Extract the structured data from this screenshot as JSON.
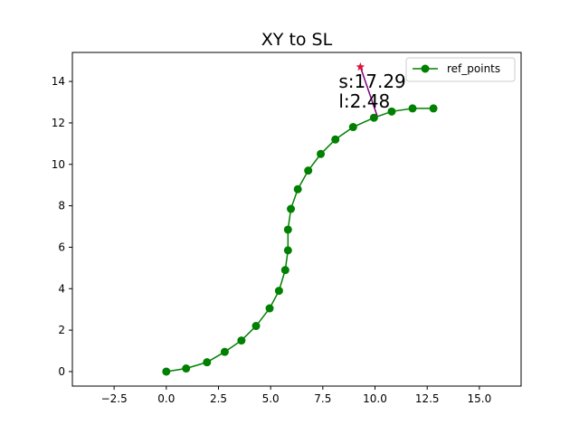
{
  "chart_data": {
    "type": "line",
    "title": "XY to SL",
    "xlabel": "",
    "ylabel": "",
    "xlim": [
      -4.5,
      17.0
    ],
    "ylim": [
      -0.7,
      15.4
    ],
    "xticks": [
      -2.5,
      0.0,
      2.5,
      5.0,
      7.5,
      10.0,
      12.5,
      15.0
    ],
    "xtick_labels": [
      "−2.5",
      "0.0",
      "2.5",
      "5.0",
      "7.5",
      "10.0",
      "12.5",
      "15.0"
    ],
    "yticks": [
      0,
      2,
      4,
      6,
      8,
      10,
      12,
      14
    ],
    "ytick_labels": [
      "0",
      "2",
      "4",
      "6",
      "8",
      "10",
      "12",
      "14"
    ],
    "grid": false,
    "legend": {
      "placement": "top-right",
      "entries": [
        "ref_points"
      ]
    },
    "series": [
      {
        "name": "ref_points",
        "color": "#008000",
        "marker": "circle",
        "x": [
          0.0,
          0.95,
          1.95,
          2.8,
          3.6,
          4.3,
          4.95,
          5.4,
          5.7,
          5.83,
          5.83,
          5.97,
          6.3,
          6.8,
          7.4,
          8.1,
          8.95,
          9.95,
          10.8,
          11.8,
          12.8
        ],
        "y": [
          0.0,
          0.15,
          0.45,
          0.95,
          1.5,
          2.2,
          3.05,
          3.9,
          4.9,
          5.85,
          6.85,
          7.85,
          8.8,
          9.7,
          10.5,
          11.2,
          11.8,
          12.25,
          12.55,
          12.7,
          12.7
        ]
      }
    ],
    "query_point": {
      "x": 9.3,
      "y": 14.7,
      "color": "#dc143c",
      "marker": "star"
    },
    "projection_point": {
      "x": 10.1,
      "y": 12.35
    },
    "projection_line_color": "#800080",
    "annotations": {
      "s_text": "s:17.29",
      "l_text": "l:2.48"
    }
  }
}
